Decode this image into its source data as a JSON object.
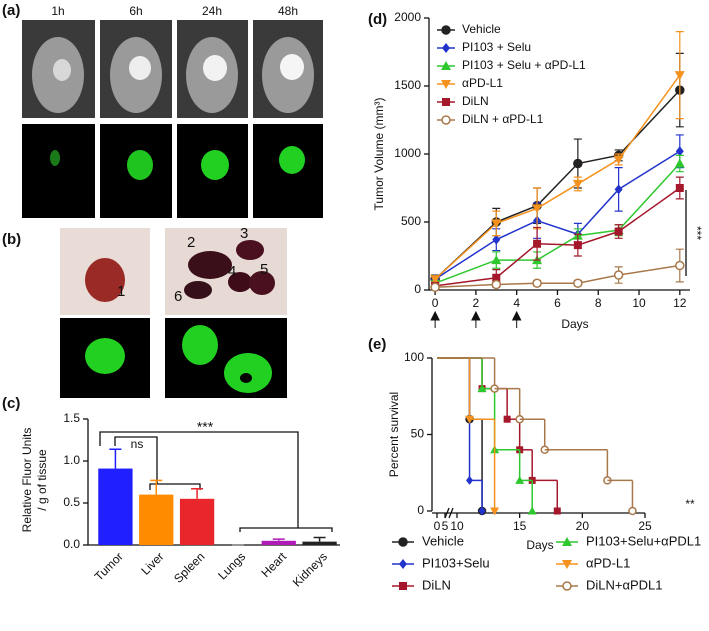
{
  "panels": {
    "a": {
      "label": "(a)",
      "times": [
        "1h",
        "6h",
        "24h",
        "48h"
      ]
    },
    "b": {
      "label": "(b)",
      "organs": [
        "1",
        "2",
        "3",
        "4",
        "5",
        "6"
      ]
    }
  },
  "chart_data": [
    {
      "type": "bar",
      "panel_label": "(c)",
      "ylabel": [
        "Relative Fluor Units",
        "/ g of tissue"
      ],
      "categories": [
        "Tumor",
        "Liver",
        "Spleen",
        "Lungs",
        "Heart",
        "Kidneys"
      ],
      "values": [
        0.91,
        0.6,
        0.55,
        0,
        0.05,
        0.04
      ],
      "errors": [
        0.23,
        0.17,
        0.12,
        0,
        0.02,
        0.05
      ],
      "colors": [
        "#1f1fff",
        "#ff8c00",
        "#e8262b",
        "#888888",
        "#b01bb8",
        "#222222"
      ],
      "ylim": [
        0,
        1.5
      ],
      "yticks": [
        {
          "value": 0,
          "label": "0.0"
        },
        {
          "value": 0.5,
          "label": "0.5"
        },
        {
          "value": 1,
          "label": "1.0"
        },
        {
          "value": 1.5,
          "label": "1.5"
        }
      ],
      "annotations": [
        "ns",
        "***"
      ]
    },
    {
      "type": "line",
      "panel_label": "(d)",
      "xlabel": "Days",
      "ylabel": "Tumor Volume (mm³)",
      "x": [
        0,
        3,
        5,
        7,
        9,
        12
      ],
      "series": [
        {
          "name": "Vehicle",
          "color": "#222222",
          "marker": "circle",
          "values": [
            80,
            500,
            620,
            930,
            990,
            1470
          ],
          "errors": [
            30,
            100,
            130,
            180,
            40,
            270
          ]
        },
        {
          "name": "PI103 + Selu",
          "color": "#2233cc",
          "marker": "diamond",
          "values": [
            80,
            370,
            510,
            410,
            740,
            1020
          ],
          "errors": [
            20,
            80,
            130,
            80,
            160,
            120
          ]
        },
        {
          "name": "PI103 + Selu + αPD-L1",
          "color": "#2ec82e",
          "marker": "triangle",
          "values": [
            50,
            220,
            220,
            400,
            440,
            930
          ],
          "errors": [
            20,
            60,
            60,
            50,
            40,
            60
          ]
        },
        {
          "name": "αPD-L1",
          "color": "#f5921e",
          "marker": "triangle-down",
          "values": [
            80,
            490,
            600,
            780,
            960,
            1580
          ],
          "errors": [
            20,
            90,
            150,
            50,
            40,
            320
          ]
        },
        {
          "name": "DiLN",
          "color": "#a5182b",
          "marker": "square",
          "values": [
            30,
            90,
            340,
            330,
            430,
            750
          ],
          "errors": [
            20,
            60,
            120,
            80,
            50,
            80
          ]
        },
        {
          "name": "DiLN + αPD-L1",
          "color": "#a8784a",
          "marker": "circle-open",
          "values": [
            20,
            40,
            50,
            50,
            110,
            180
          ],
          "errors": [
            10,
            20,
            20,
            20,
            60,
            120
          ]
        }
      ],
      "xlim": [
        -0.3,
        12.5
      ],
      "xticks": [
        0,
        2,
        4,
        6,
        8,
        10,
        12
      ],
      "ylim": [
        0,
        2000
      ],
      "yticks": [
        0,
        500,
        1000,
        1500,
        2000
      ],
      "dose_days": [
        0,
        2,
        4
      ],
      "annotations": [
        "***"
      ],
      "legend": "upper left"
    },
    {
      "type": "step",
      "panel_label": "(e)",
      "xlabel": "Days",
      "ylabel": "Percent survival",
      "series": [
        {
          "name": "Vehicle",
          "color": "#222222",
          "marker": "circle",
          "x": [
            0,
            11,
            12
          ],
          "values": [
            100,
            60,
            0
          ]
        },
        {
          "name": "PI103+Selu",
          "color": "#2233cc",
          "marker": "diamond",
          "x": [
            0,
            11,
            12
          ],
          "values": [
            100,
            20,
            0
          ]
        },
        {
          "name": "DiLN",
          "color": "#a5182b",
          "marker": "square",
          "x": [
            0,
            12,
            14,
            15,
            16,
            18
          ],
          "values": [
            100,
            80,
            60,
            40,
            20,
            0
          ]
        },
        {
          "name": "PI103+Selu+αPDL1",
          "color": "#2ec82e",
          "marker": "triangle",
          "x": [
            0,
            12,
            13,
            15,
            16
          ],
          "values": [
            100,
            80,
            40,
            20,
            0
          ]
        },
        {
          "name": "αPD-L1",
          "color": "#f5921e",
          "marker": "triangle-down",
          "x": [
            0,
            11,
            13
          ],
          "values": [
            100,
            60,
            0
          ]
        },
        {
          "name": "DiLN+αPDL1",
          "color": "#a8784a",
          "marker": "circle-open",
          "x": [
            0,
            13,
            15,
            17,
            22,
            24
          ],
          "values": [
            100,
            80,
            60,
            40,
            20,
            0
          ]
        }
      ],
      "xlim": [
        0,
        25
      ],
      "axis_break": [
        5,
        10
      ],
      "xticks": [
        0,
        5,
        10,
        15,
        20,
        25
      ],
      "ylim": [
        0,
        100
      ],
      "yticks": [
        0,
        50,
        100
      ],
      "annotations": [
        "**"
      ],
      "legend": "below"
    }
  ]
}
